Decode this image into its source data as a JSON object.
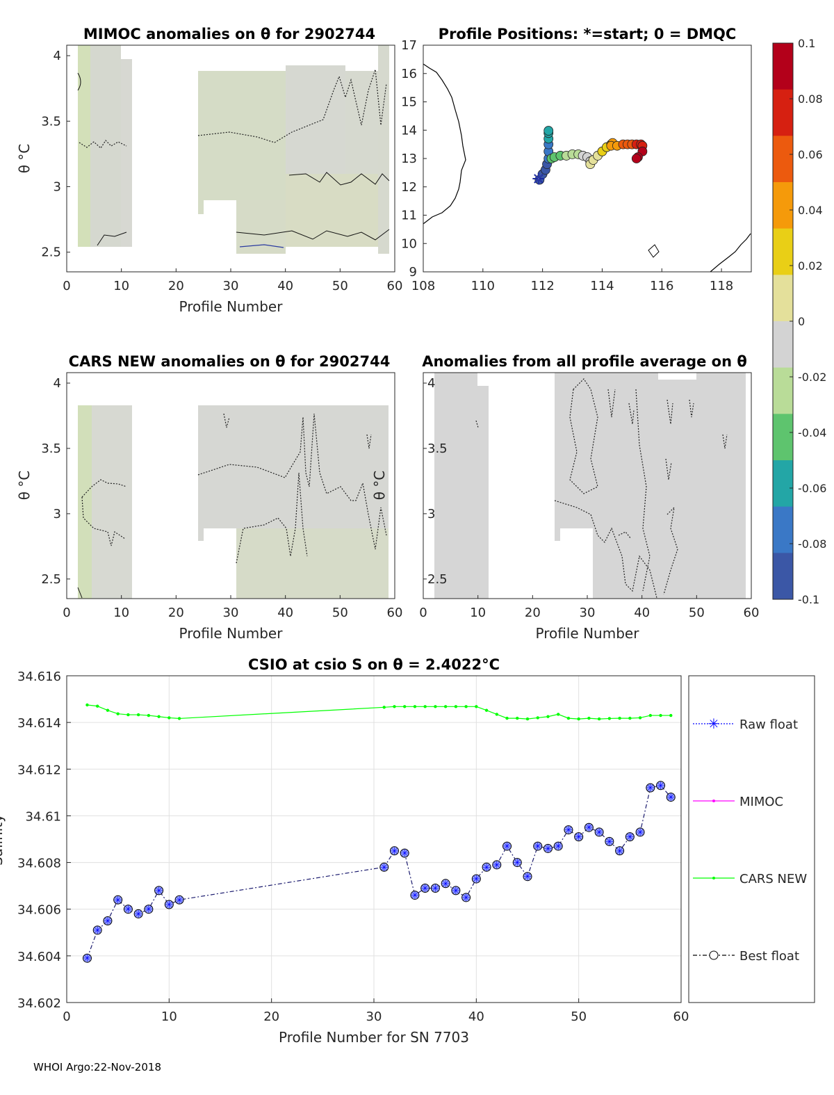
{
  "footer": "WHOI Argo:22-Nov-2018",
  "panel1": {
    "title": "MIMOC anomalies on θ  for 2902744",
    "xlabel": "Profile Number",
    "ylabel": "θ °C",
    "xticks": [
      "0",
      "10",
      "20",
      "30",
      "40",
      "50",
      "60"
    ],
    "yticks": [
      "2.5",
      "3",
      "3.5",
      "4"
    ]
  },
  "panel2": {
    "title": "Profile Positions: *=start; 0 = DMQC",
    "xticks": [
      "108",
      "110",
      "112",
      "114",
      "116",
      "118"
    ],
    "yticks": [
      "9",
      "10",
      "11",
      "12",
      "13",
      "14",
      "15",
      "16",
      "17"
    ]
  },
  "panel3": {
    "title": "CARS NEW anomalies on θ for 2902744",
    "xlabel": "Profile Number",
    "ylabel": "θ °C",
    "xticks": [
      "0",
      "10",
      "20",
      "30",
      "40",
      "50",
      "60"
    ],
    "yticks": [
      "2.5",
      "3",
      "3.5",
      "4"
    ]
  },
  "panel4": {
    "title": "Anomalies from all profile average on θ",
    "xlabel": "Profile Number",
    "ylabel": "θ °C",
    "xticks": [
      "0",
      "10",
      "20",
      "30",
      "40",
      "50",
      "60"
    ],
    "yticks": [
      "2.5",
      "3",
      "3.5",
      "4"
    ]
  },
  "colorbar": {
    "ticks": [
      "0.1",
      "0.08",
      "0.06",
      "0.04",
      "0.02",
      "0",
      "-0.02",
      "-0.04",
      "-0.06",
      "-0.08",
      "-0.1"
    ],
    "colors": [
      "#b3001a",
      "#d62011",
      "#ec5a0e",
      "#f59a0a",
      "#e9cf16",
      "#e4e09b",
      "#d3d3d3",
      "#b9dc98",
      "#5ec46e",
      "#23a6a6",
      "#3a78c6",
      "#3b57a6"
    ]
  },
  "legend": {
    "raw": "Raw float",
    "mimoc": "MIMOC",
    "cars": "CARS NEW",
    "best": "Best float",
    "colors": {
      "raw": "#0000ff",
      "mimoc": "#ff00ff",
      "cars": "#00ff00",
      "best": "#000000"
    }
  },
  "chart_data": [
    {
      "type": "line",
      "title": "CSIO at csio S on θ = 2.4022°C",
      "xlabel": "Profile Number for SN 7703",
      "ylabel": "Salinity",
      "xlim": [
        0,
        60
      ],
      "ylim": [
        34.602,
        34.616
      ],
      "xticks": [
        "0",
        "10",
        "20",
        "30",
        "40",
        "50",
        "60"
      ],
      "yticks": [
        "34.602",
        "34.604",
        "34.606",
        "34.608",
        "34.61",
        "34.612",
        "34.614",
        "34.616"
      ],
      "grid": true,
      "legend_position": "right (outside)",
      "series": [
        {
          "name": "CARS NEW",
          "x": [
            2,
            3,
            4,
            5,
            6,
            7,
            8,
            9,
            10,
            11,
            31,
            32,
            33,
            34,
            35,
            36,
            37,
            38,
            39,
            40,
            41,
            42,
            43,
            44,
            45,
            46,
            47,
            48,
            49,
            50,
            51,
            52,
            53,
            54,
            55,
            56,
            57,
            58,
            59
          ],
          "values": [
            34.61475,
            34.6147,
            34.61452,
            34.61437,
            34.61433,
            34.61433,
            34.6143,
            34.61425,
            34.6142,
            34.61417,
            34.61465,
            34.61468,
            34.61468,
            34.61468,
            34.61468,
            34.61468,
            34.61468,
            34.61468,
            34.61468,
            34.61468,
            34.61452,
            34.61435,
            34.61418,
            34.61418,
            34.61415,
            34.6142,
            34.61425,
            34.61435,
            34.61418,
            34.61415,
            34.61418,
            34.61415,
            34.61417,
            34.61418,
            34.61418,
            34.6142,
            34.6143,
            34.6143,
            34.6143
          ]
        },
        {
          "name": "Best float",
          "x": [
            2,
            3,
            4,
            5,
            6,
            7,
            8,
            9,
            10,
            11,
            31,
            32,
            33,
            34,
            35,
            36,
            37,
            38,
            39,
            40,
            41,
            42,
            43,
            44,
            45,
            46,
            47,
            48,
            49,
            50,
            51,
            52,
            53,
            54,
            55,
            56,
            57,
            58,
            59
          ],
          "values": [
            34.6039,
            34.6051,
            34.6055,
            34.6064,
            34.606,
            34.6058,
            34.606,
            34.6068,
            34.6062,
            34.6064,
            34.6078,
            34.6085,
            34.6084,
            34.6066,
            34.6069,
            34.6069,
            34.6071,
            34.6068,
            34.6065,
            34.6073,
            34.6078,
            34.6079,
            34.6087,
            34.608,
            34.6074,
            34.6087,
            34.6086,
            34.6087,
            34.6094,
            34.6091,
            34.6095,
            34.6093,
            34.6089,
            34.6085,
            34.6091,
            34.6093,
            34.6112,
            34.6113,
            34.6108
          ]
        }
      ]
    },
    {
      "type": "scatter",
      "title": "Profile Positions: *=start; 0 = DMQC",
      "xlim": [
        108,
        119
      ],
      "ylim": [
        9,
        17
      ],
      "series": [
        {
          "name": "track",
          "x": [
            111.9,
            112.0,
            112.1,
            112.15,
            112.2,
            112.2,
            112.2,
            112.2,
            112.2,
            112.2,
            112.3,
            112.4,
            112.6,
            112.8,
            113.0,
            113.2,
            113.35,
            113.5,
            113.6,
            113.6,
            113.7,
            113.85,
            114.0,
            114.15,
            114.3,
            114.35,
            114.3,
            114.5,
            114.7,
            114.85,
            115.0,
            115.15,
            115.3,
            115.35,
            115.35,
            115.2,
            115.15
          ],
          "y": [
            12.25,
            12.45,
            12.6,
            12.8,
            13.0,
            13.25,
            13.5,
            13.7,
            13.9,
            13.98,
            13.0,
            13.05,
            13.1,
            13.1,
            13.15,
            13.15,
            13.1,
            13.05,
            12.9,
            12.8,
            12.95,
            13.1,
            13.25,
            13.4,
            13.5,
            13.55,
            13.45,
            13.45,
            13.5,
            13.5,
            13.5,
            13.5,
            13.5,
            13.45,
            13.25,
            13.05,
            13.0
          ]
        }
      ]
    }
  ]
}
